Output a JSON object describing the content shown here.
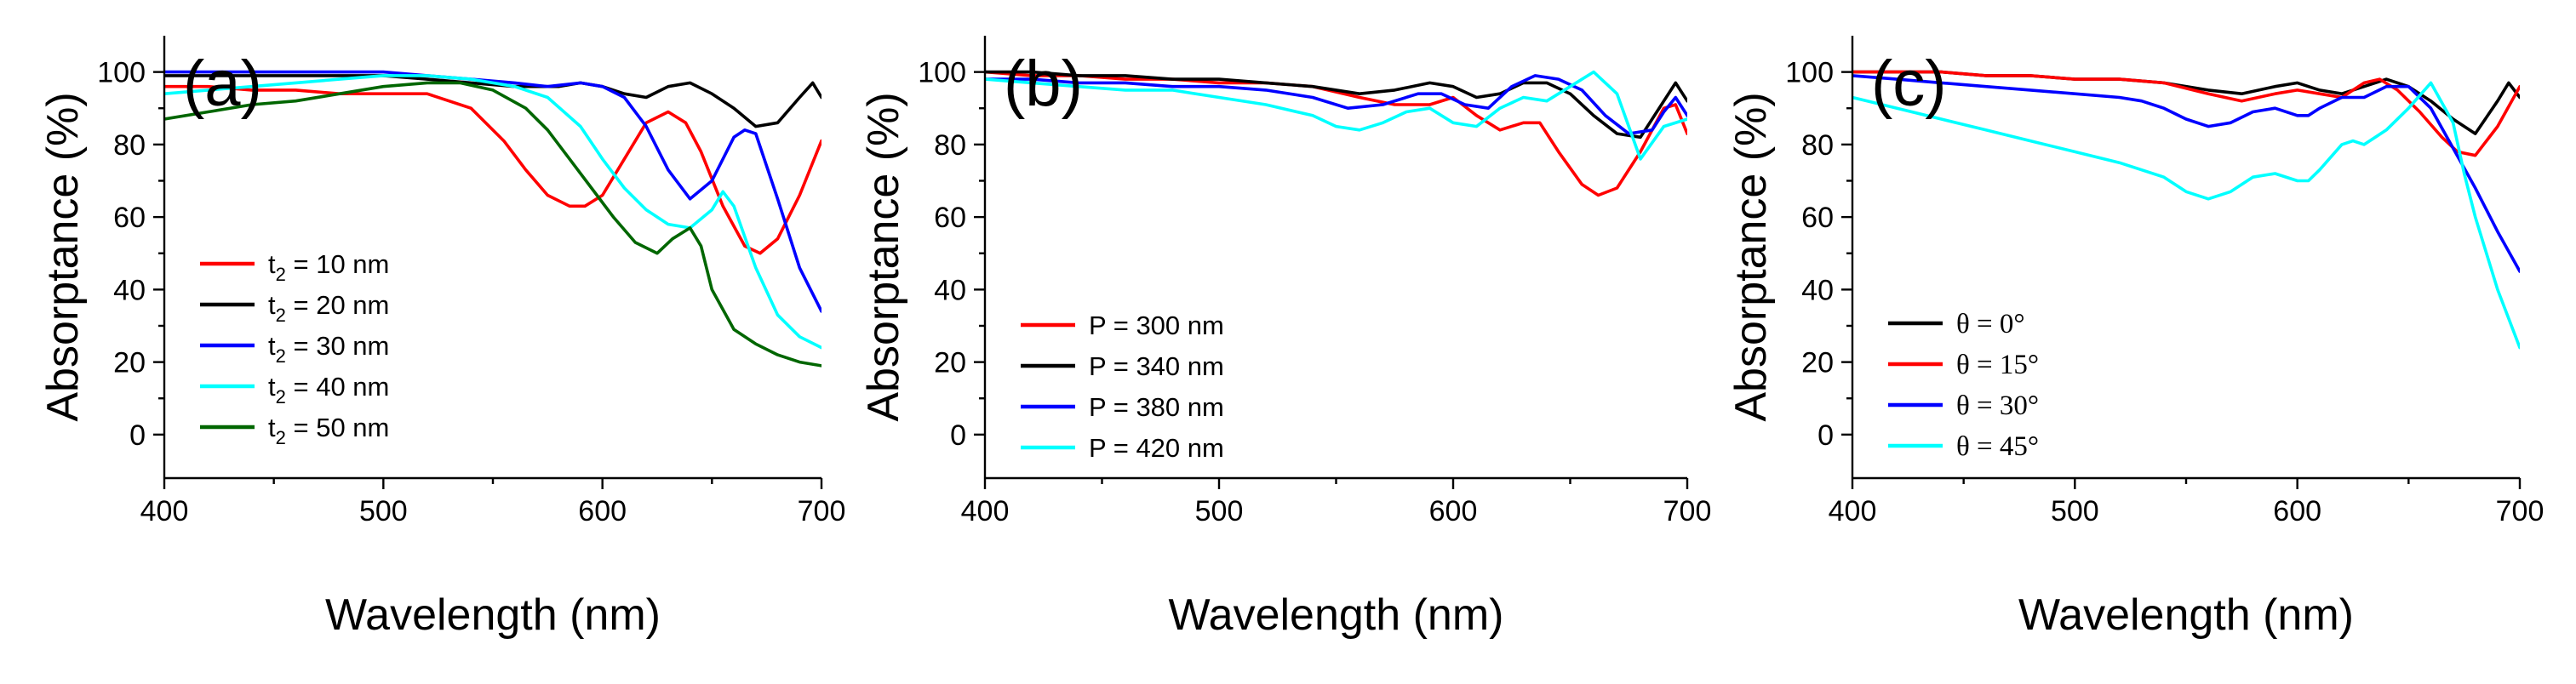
{
  "chart_data": [
    {
      "type": "line",
      "panel_label": "(a)",
      "title": "",
      "xlabel": "Wavelength (nm)",
      "ylabel": "Absorptance (%)",
      "xlim": [
        400,
        700
      ],
      "ylim": [
        -12,
        110
      ],
      "xticks": [
        400,
        500,
        600,
        700
      ],
      "yticks": [
        0,
        20,
        40,
        60,
        80,
        100
      ],
      "legend": {
        "position": "lower-left",
        "style": "sans"
      },
      "series": [
        {
          "name_parts": [
            "t",
            "2",
            " = 10 nm"
          ],
          "color": "#ff0000",
          "x": [
            400,
            420,
            440,
            460,
            480,
            500,
            520,
            540,
            555,
            565,
            575,
            585,
            592,
            600,
            610,
            620,
            630,
            638,
            645,
            655,
            665,
            672,
            680,
            690,
            700
          ],
          "y": [
            96,
            96,
            95,
            95,
            94,
            94,
            94,
            90,
            81,
            73,
            66,
            63,
            63,
            66,
            76,
            86,
            89,
            86,
            78,
            63,
            52,
            50,
            54,
            66,
            81
          ]
        },
        {
          "name_parts": [
            "t",
            "2",
            " = 20 nm"
          ],
          "color": "#000000",
          "x": [
            400,
            420,
            440,
            460,
            480,
            500,
            520,
            540,
            560,
            570,
            580,
            590,
            600,
            610,
            620,
            630,
            640,
            650,
            660,
            670,
            680,
            690,
            696,
            700
          ],
          "y": [
            99,
            99,
            99,
            99,
            99,
            99,
            98,
            97,
            96,
            96,
            96,
            97,
            96,
            94,
            93,
            96,
            97,
            94,
            90,
            85,
            86,
            93,
            97,
            93
          ]
        },
        {
          "name_parts": [
            "t",
            "2",
            " = 30 nm"
          ],
          "color": "#0000ff",
          "x": [
            400,
            420,
            440,
            460,
            480,
            500,
            520,
            540,
            560,
            575,
            590,
            600,
            610,
            620,
            630,
            640,
            650,
            660,
            665,
            670,
            680,
            690,
            700
          ],
          "y": [
            100,
            100,
            100,
            100,
            100,
            100,
            99,
            98,
            97,
            96,
            97,
            96,
            93,
            85,
            73,
            65,
            70,
            82,
            84,
            83,
            65,
            46,
            34
          ]
        },
        {
          "name_parts": [
            "t",
            "2",
            " = 40 nm"
          ],
          "color": "#00ffff",
          "x": [
            400,
            420,
            440,
            460,
            480,
            500,
            520,
            540,
            560,
            575,
            590,
            600,
            610,
            620,
            630,
            640,
            650,
            655,
            660,
            670,
            680,
            690,
            700
          ],
          "y": [
            94,
            95,
            96,
            97,
            98,
            99,
            99,
            98,
            96,
            93,
            85,
            76,
            68,
            62,
            58,
            57,
            62,
            67,
            63,
            46,
            33,
            27,
            24
          ]
        },
        {
          "name_parts": [
            "t",
            "2",
            " = 50 nm"
          ],
          "color": "#006600",
          "x": [
            400,
            420,
            440,
            460,
            480,
            500,
            520,
            535,
            550,
            565,
            575,
            585,
            595,
            605,
            615,
            625,
            632,
            640,
            645,
            650,
            660,
            670,
            680,
            690,
            700
          ],
          "y": [
            87,
            89,
            91,
            92,
            94,
            96,
            97,
            97,
            95,
            90,
            84,
            76,
            68,
            60,
            53,
            50,
            54,
            57,
            52,
            40,
            29,
            25,
            22,
            20,
            19
          ]
        }
      ]
    },
    {
      "type": "line",
      "panel_label": "(b)",
      "title": "",
      "xlabel": "Wavelength (nm)",
      "ylabel": "Absorptance (%)",
      "xlim": [
        400,
        700
      ],
      "ylim": [
        -12,
        110
      ],
      "xticks": [
        400,
        500,
        600,
        700
      ],
      "yticks": [
        0,
        20,
        40,
        60,
        80,
        100
      ],
      "legend": {
        "position": "lower-left",
        "style": "sans"
      },
      "series": [
        {
          "name": "P = 300 nm",
          "color": "#ff0000",
          "x": [
            400,
            420,
            440,
            460,
            480,
            500,
            520,
            540,
            560,
            575,
            590,
            600,
            610,
            620,
            630,
            637,
            645,
            655,
            662,
            670,
            680,
            690,
            695,
            700
          ],
          "y": [
            100,
            99,
            99,
            98,
            98,
            97,
            97,
            96,
            93,
            91,
            91,
            93,
            88,
            84,
            86,
            86,
            78,
            69,
            66,
            68,
            78,
            90,
            91,
            83
          ]
        },
        {
          "name": "P = 340 nm",
          "color": "#000000",
          "x": [
            400,
            420,
            440,
            460,
            480,
            500,
            520,
            540,
            560,
            575,
            590,
            600,
            610,
            620,
            630,
            640,
            650,
            660,
            670,
            680,
            690,
            695,
            700
          ],
          "y": [
            100,
            100,
            99,
            99,
            98,
            98,
            97,
            96,
            94,
            95,
            97,
            96,
            93,
            94,
            97,
            97,
            94,
            88,
            83,
            82,
            92,
            97,
            92
          ]
        },
        {
          "name": "P = 380 nm",
          "color": "#0000ff",
          "x": [
            400,
            420,
            440,
            460,
            480,
            500,
            520,
            540,
            555,
            570,
            585,
            595,
            605,
            615,
            625,
            635,
            645,
            655,
            665,
            675,
            685,
            690,
            695,
            700
          ],
          "y": [
            98,
            98,
            97,
            97,
            96,
            96,
            95,
            93,
            90,
            91,
            94,
            94,
            91,
            90,
            96,
            99,
            98,
            95,
            88,
            83,
            84,
            89,
            93,
            88
          ]
        },
        {
          "name": "P = 420 nm",
          "color": "#00ffff",
          "x": [
            400,
            420,
            440,
            460,
            480,
            500,
            520,
            540,
            550,
            560,
            570,
            580,
            590,
            600,
            610,
            620,
            630,
            640,
            650,
            660,
            670,
            680,
            690,
            700
          ],
          "y": [
            98,
            97,
            96,
            95,
            95,
            93,
            91,
            88,
            85,
            84,
            86,
            89,
            90,
            86,
            85,
            90,
            93,
            92,
            96,
            100,
            94,
            76,
            85,
            87
          ]
        }
      ]
    },
    {
      "type": "line",
      "panel_label": "(c)",
      "title": "",
      "xlabel": "Wavelength (nm)",
      "ylabel": "Absorptance (%)",
      "xlim": [
        400,
        700
      ],
      "ylim": [
        -12,
        110
      ],
      "xticks": [
        400,
        500,
        600,
        700
      ],
      "yticks": [
        0,
        20,
        40,
        60,
        80,
        100
      ],
      "legend": {
        "position": "lower-left",
        "style": "serif"
      },
      "series": [
        {
          "name": "θ = 0°",
          "color": "#000000",
          "x": [
            400,
            420,
            440,
            460,
            480,
            500,
            520,
            540,
            560,
            575,
            590,
            600,
            610,
            620,
            630,
            640,
            650,
            660,
            670,
            680,
            690,
            695,
            700
          ],
          "y": [
            100,
            100,
            100,
            99,
            99,
            98,
            98,
            97,
            95,
            94,
            96,
            97,
            95,
            94,
            96,
            98,
            96,
            92,
            87,
            83,
            92,
            97,
            93
          ]
        },
        {
          "name": "θ = 15°",
          "color": "#ff0000",
          "x": [
            400,
            420,
            440,
            460,
            480,
            500,
            520,
            540,
            560,
            575,
            590,
            600,
            610,
            620,
            630,
            637,
            645,
            655,
            665,
            672,
            680,
            690,
            700
          ],
          "y": [
            100,
            100,
            100,
            99,
            99,
            98,
            98,
            97,
            94,
            92,
            94,
            95,
            94,
            93,
            97,
            98,
            95,
            89,
            82,
            78,
            77,
            85,
            96
          ]
        },
        {
          "name": "θ = 30°",
          "color": "#0000ff",
          "x": [
            400,
            420,
            440,
            460,
            480,
            500,
            520,
            530,
            540,
            550,
            560,
            570,
            580,
            590,
            600,
            605,
            610,
            620,
            630,
            640,
            650,
            660,
            670,
            680,
            690,
            700
          ],
          "y": [
            99,
            98,
            97,
            96,
            95,
            94,
            93,
            92,
            90,
            87,
            85,
            86,
            89,
            90,
            88,
            88,
            90,
            93,
            93,
            96,
            96,
            90,
            79,
            68,
            56,
            45
          ]
        },
        {
          "name": "θ = 45°",
          "color": "#00ffff",
          "x": [
            400,
            420,
            440,
            460,
            480,
            500,
            520,
            540,
            550,
            560,
            570,
            580,
            590,
            600,
            605,
            610,
            620,
            625,
            630,
            640,
            650,
            660,
            670,
            675,
            680,
            690,
            700
          ],
          "y": [
            93,
            90,
            87,
            84,
            81,
            78,
            75,
            71,
            67,
            65,
            67,
            71,
            72,
            70,
            70,
            73,
            80,
            81,
            80,
            84,
            90,
            97,
            86,
            72,
            60,
            40,
            24
          ]
        }
      ]
    }
  ]
}
